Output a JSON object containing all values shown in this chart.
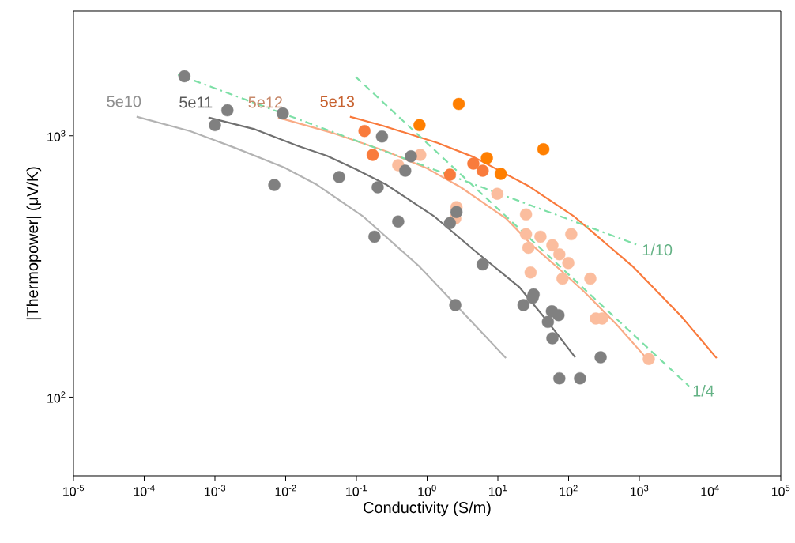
{
  "chart_data": {
    "type": "scatter",
    "xlabel": "Conductivity (S/m)",
    "ylabel": "|Thermopower| (μV/K)",
    "log": "xy",
    "grid": false,
    "xlim": [
      1e-05,
      100000.0
    ],
    "ylim": [
      50,
      3000
    ],
    "xticks": [
      {
        "value": 1e-05,
        "label": "10$^{-5}$"
      },
      {
        "value": 0.0001,
        "label": "10$^{-4}$"
      },
      {
        "value": 0.001,
        "label": "10$^{-3}$"
      },
      {
        "value": 0.01,
        "label": "10$^{-2}$"
      },
      {
        "value": 0.1,
        "label": "10$^{-1}$"
      },
      {
        "value": 1,
        "label": "10$^{0}$"
      },
      {
        "value": 10,
        "label": "10$^{1}$"
      },
      {
        "value": 100,
        "label": "10$^{2}$"
      },
      {
        "value": 1000,
        "label": "10$^{3}$"
      },
      {
        "value": 10000,
        "label": "10$^{4}$"
      },
      {
        "value": 100000,
        "label": "10$^{5}$"
      }
    ],
    "yticks": [
      {
        "value": 100,
        "label": "10$^{2}$"
      },
      {
        "value": 1000,
        "label": "10$^{3}$"
      }
    ],
    "series": [
      {
        "type": "line",
        "name": "5e10",
        "color": "#b3b3b3",
        "line_style": "solid",
        "marker": "none",
        "x": [
          7.8e-05,
          0.00044,
          0.0019,
          0.0096,
          0.028,
          0.126,
          0.76,
          2.8,
          13
        ],
        "values": [
          1183,
          1043,
          900,
          756,
          648,
          490,
          318,
          219,
          141
        ]
      },
      {
        "type": "line",
        "name": "5e11",
        "color": "#707070",
        "line_style": "solid",
        "marker": "none",
        "x": [
          0.00081,
          0.0037,
          0.015,
          0.038,
          0.098,
          0.27,
          1.28,
          4.6,
          20,
          51,
          124
        ],
        "values": [
          1175,
          1058,
          913,
          839,
          745,
          648,
          490,
          365,
          264,
          194,
          142
        ]
      },
      {
        "type": "line",
        "name": "5e12",
        "color": "#f9ab86",
        "line_style": "solid",
        "marker": "none",
        "x": [
          0.0078,
          0.049,
          0.27,
          1.0,
          3.0,
          13,
          30,
          72,
          169,
          474,
          1260
        ],
        "values": [
          1175,
          1020,
          870,
          750,
          635,
          483,
          383,
          311,
          252,
          190,
          141
        ]
      },
      {
        "type": "line",
        "name": "5e13",
        "color": "#f97a3c",
        "line_style": "solid",
        "marker": "none",
        "x": [
          0.081,
          0.23,
          1.4,
          4.6,
          28,
          121,
          790,
          3900,
          12400
        ],
        "values": [
          1183,
          1095,
          939,
          828,
          639,
          490,
          318,
          204,
          141
        ]
      },
      {
        "type": "line",
        "name": "1/10",
        "color": "#7ddfa6",
        "line_style": "dashdot",
        "marker": "none",
        "x": [
          0.0003,
          975
        ],
        "values": [
          1714,
          381
        ]
      },
      {
        "type": "line",
        "name": "1/4",
        "color": "#7ddfa6",
        "line_style": "dashed",
        "marker": "none",
        "x": [
          0.098,
          5060
        ],
        "values": [
          1679,
          110
        ]
      },
      {
        "color": "#fbbd9e",
        "marker": "circle",
        "x": [
          0.8,
          0.39,
          9.8,
          2.6,
          2.5,
          25,
          25,
          40,
          109,
          27,
          59,
          74,
          99,
          29,
          82,
          203,
          243,
          298,
          1360
        ],
        "values": [
          845,
          772,
          600,
          533,
          483,
          500,
          420,
          411,
          420,
          373,
          381,
          352,
          326,
          300,
          284,
          284,
          200,
          200,
          140
        ]
      },
      {
        "color": "#808080",
        "marker": "circle",
        "x": [
          0.00037,
          0.0015,
          0.001,
          0.0091,
          0.0069,
          0.057,
          0.23,
          0.2,
          0.39,
          0.18,
          0.59,
          0.49,
          2.6,
          2.1,
          6.1,
          2.5,
          32,
          31,
          23,
          58,
          72,
          51,
          59,
          284,
          74,
          145
        ],
        "values": [
          1690,
          1251,
          1098,
          1217,
          648,
          695,
          993,
          635,
          470,
          411,
          834,
          735,
          511,
          463,
          322,
          225,
          247,
          240,
          225,
          213,
          206,
          194,
          168,
          142,
          118,
          118
        ]
      },
      {
        "color": "#f97b3c",
        "marker": "circle",
        "x": [
          0.13,
          0.17,
          2.1,
          4.5,
          6.1
        ],
        "values": [
          1043,
          845,
          710,
          783,
          735
        ]
      },
      {
        "color": "#ff7f00",
        "marker": "circle",
        "x": [
          0.78,
          2.8,
          7.0,
          11,
          44
        ],
        "values": [
          1098,
          1323,
          822,
          715,
          888
        ]
      }
    ]
  }
}
